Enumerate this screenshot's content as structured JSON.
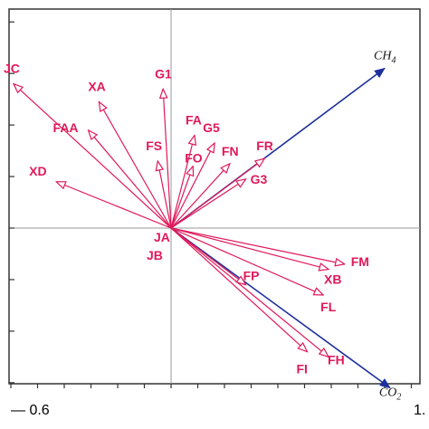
{
  "chart_data": {
    "type": "biplot",
    "xlim": [
      -0.6,
      1.0
    ],
    "ylim": [
      -1.0,
      1.0
    ],
    "x_tick_labels": [
      "— 0.6",
      "1."
    ],
    "species": [
      {
        "label": "JC",
        "x": -0.59,
        "y": 0.56
      },
      {
        "label": "XA",
        "x": -0.27,
        "y": 0.49
      },
      {
        "label": "G1",
        "x": -0.03,
        "y": 0.54
      },
      {
        "label": "FAA",
        "x": -0.31,
        "y": 0.38
      },
      {
        "label": "FA",
        "x": 0.088,
        "y": 0.36
      },
      {
        "label": "G5",
        "x": 0.163,
        "y": 0.33
      },
      {
        "label": "FS",
        "x": -0.05,
        "y": 0.26
      },
      {
        "label": "FO",
        "x": 0.082,
        "y": 0.24
      },
      {
        "label": "FN",
        "x": 0.22,
        "y": 0.25
      },
      {
        "label": "FR",
        "x": 0.35,
        "y": 0.27
      },
      {
        "label": "XD",
        "x": -0.43,
        "y": 0.18
      },
      {
        "label": "G3",
        "x": 0.28,
        "y": 0.19
      },
      {
        "label": "FM",
        "x": 0.65,
        "y": -0.14
      },
      {
        "label": "XB",
        "x": 0.59,
        "y": -0.16
      },
      {
        "label": "FP",
        "x": 0.28,
        "y": -0.22
      },
      {
        "label": "FL",
        "x": 0.57,
        "y": -0.26
      },
      {
        "label": "FH",
        "x": 0.59,
        "y": -0.5
      },
      {
        "label": "FI",
        "x": 0.51,
        "y": -0.48
      },
      {
        "label": "JA",
        "x": -0.02,
        "y": -0.02
      },
      {
        "label": "JB",
        "x": -0.018,
        "y": -0.01
      }
    ],
    "environment": [
      {
        "label": "CH4",
        "x": 0.8,
        "y": 0.62
      },
      {
        "label": "CO2",
        "x": 0.82,
        "y": -0.62
      }
    ],
    "species_color": "#e0195a",
    "environment_color": "#1c2f9c"
  }
}
